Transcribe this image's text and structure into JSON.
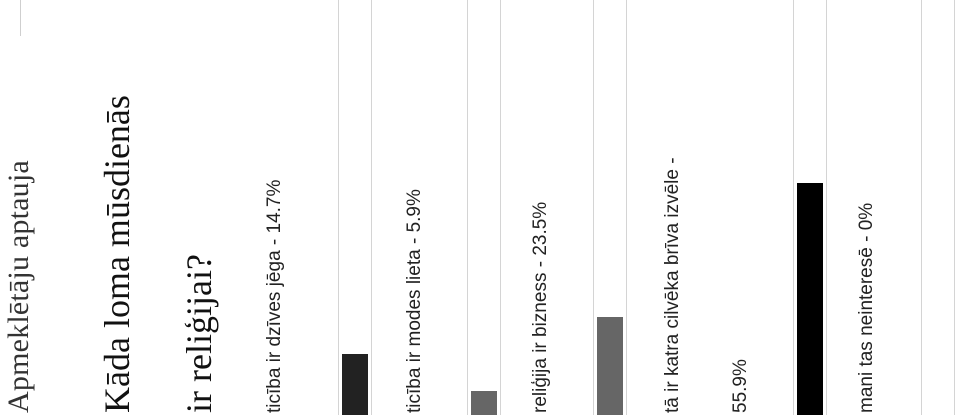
{
  "poll": {
    "widget_title": "Apmeklētāju aptauja",
    "question_line1": "Kāda loma mūsdienās",
    "question_line2": "ir reliģijai?",
    "options": [
      {
        "label": "ticība ir dzīves jēga - 14.7%",
        "percent": 14.7,
        "color": "#222222"
      },
      {
        "label": "ticība ir modes lieta - 5.9%",
        "percent": 5.9,
        "color": "#666666"
      },
      {
        "label": "reliģija ir bizness - 23.5%",
        "percent": 23.5,
        "color": "#666666"
      },
      {
        "label_line1": "tā ir katra cilvēka brīva izvēle -",
        "label_line2": "55.9%",
        "percent": 55.9,
        "color": "#000000"
      },
      {
        "label": "mani tas neinteresē - 0%",
        "percent": 0,
        "color": "#666666"
      }
    ]
  }
}
